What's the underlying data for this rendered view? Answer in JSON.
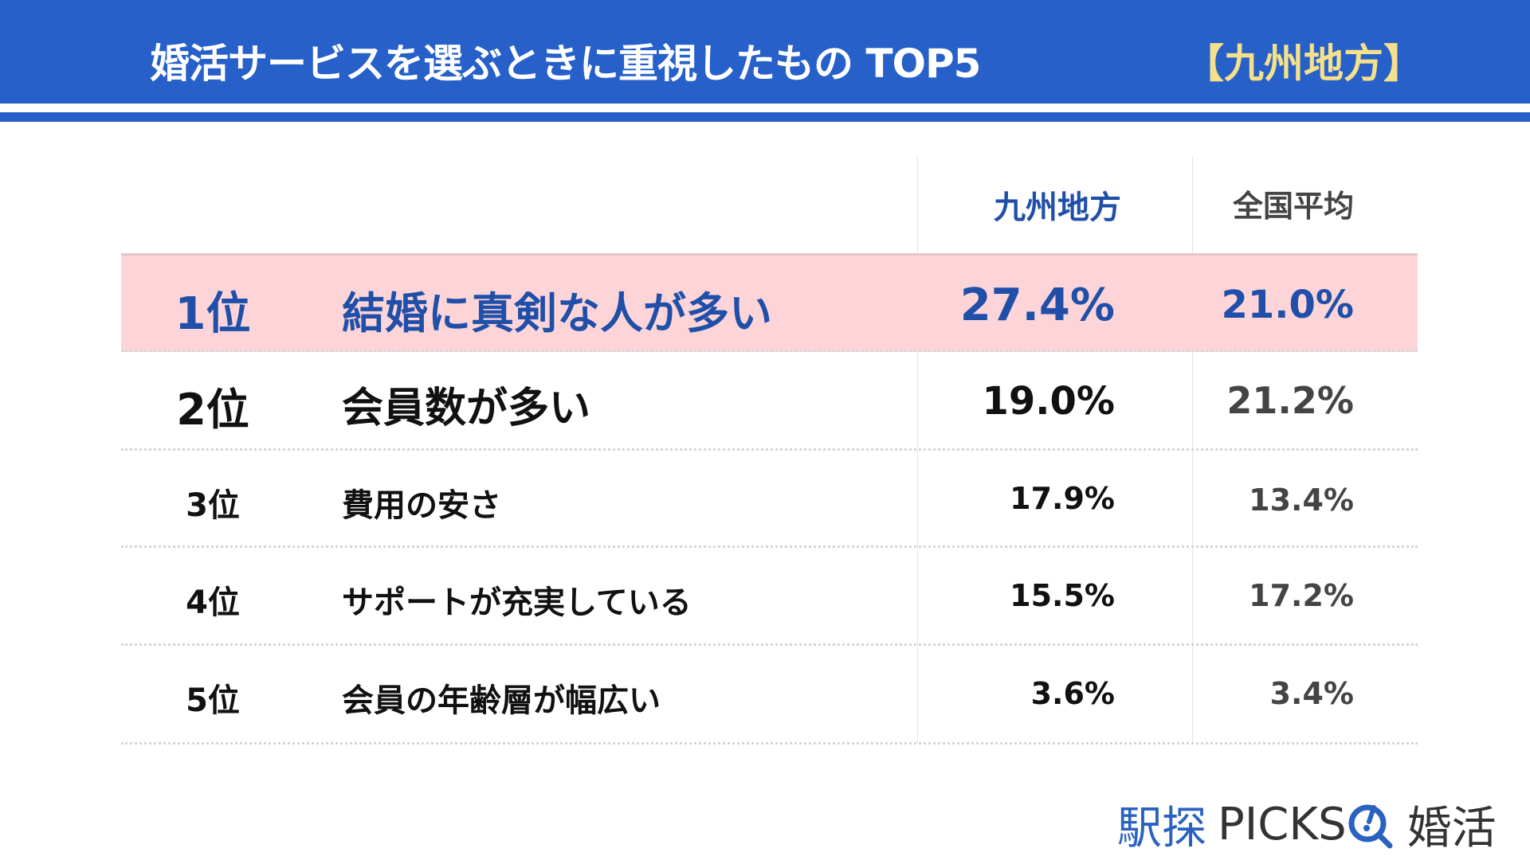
{
  "header": {
    "title": "婚活サービスを選ぶときに重視したもの TOP5",
    "region": "【九州地方】"
  },
  "columns": {
    "region": "九州地方",
    "national": "全国平均"
  },
  "rows": [
    {
      "rank": "1位",
      "label": "結婚に真剣な人が多い",
      "region": "27.4%",
      "national": "21.0%"
    },
    {
      "rank": "2位",
      "label": "会員数が多い",
      "region": "19.0%",
      "national": "21.2%"
    },
    {
      "rank": "3位",
      "label": "費用の安さ",
      "region": "17.9%",
      "national": "13.4%"
    },
    {
      "rank": "4位",
      "label": "サポートが充実している",
      "region": "15.5%",
      "national": "17.2%"
    },
    {
      "rank": "5位",
      "label": "会員の年齢層が幅広い",
      "region": "3.6%",
      "national": "3.4%"
    }
  ],
  "logo": {
    "part1": "駅探",
    "part2": "PICKS",
    "part3": "婚活"
  },
  "colors": {
    "blue": "#2660c8",
    "highlight": "#fdd5d8",
    "accent_text": "#1f4fa8",
    "yellow": "#f5e08c"
  }
}
